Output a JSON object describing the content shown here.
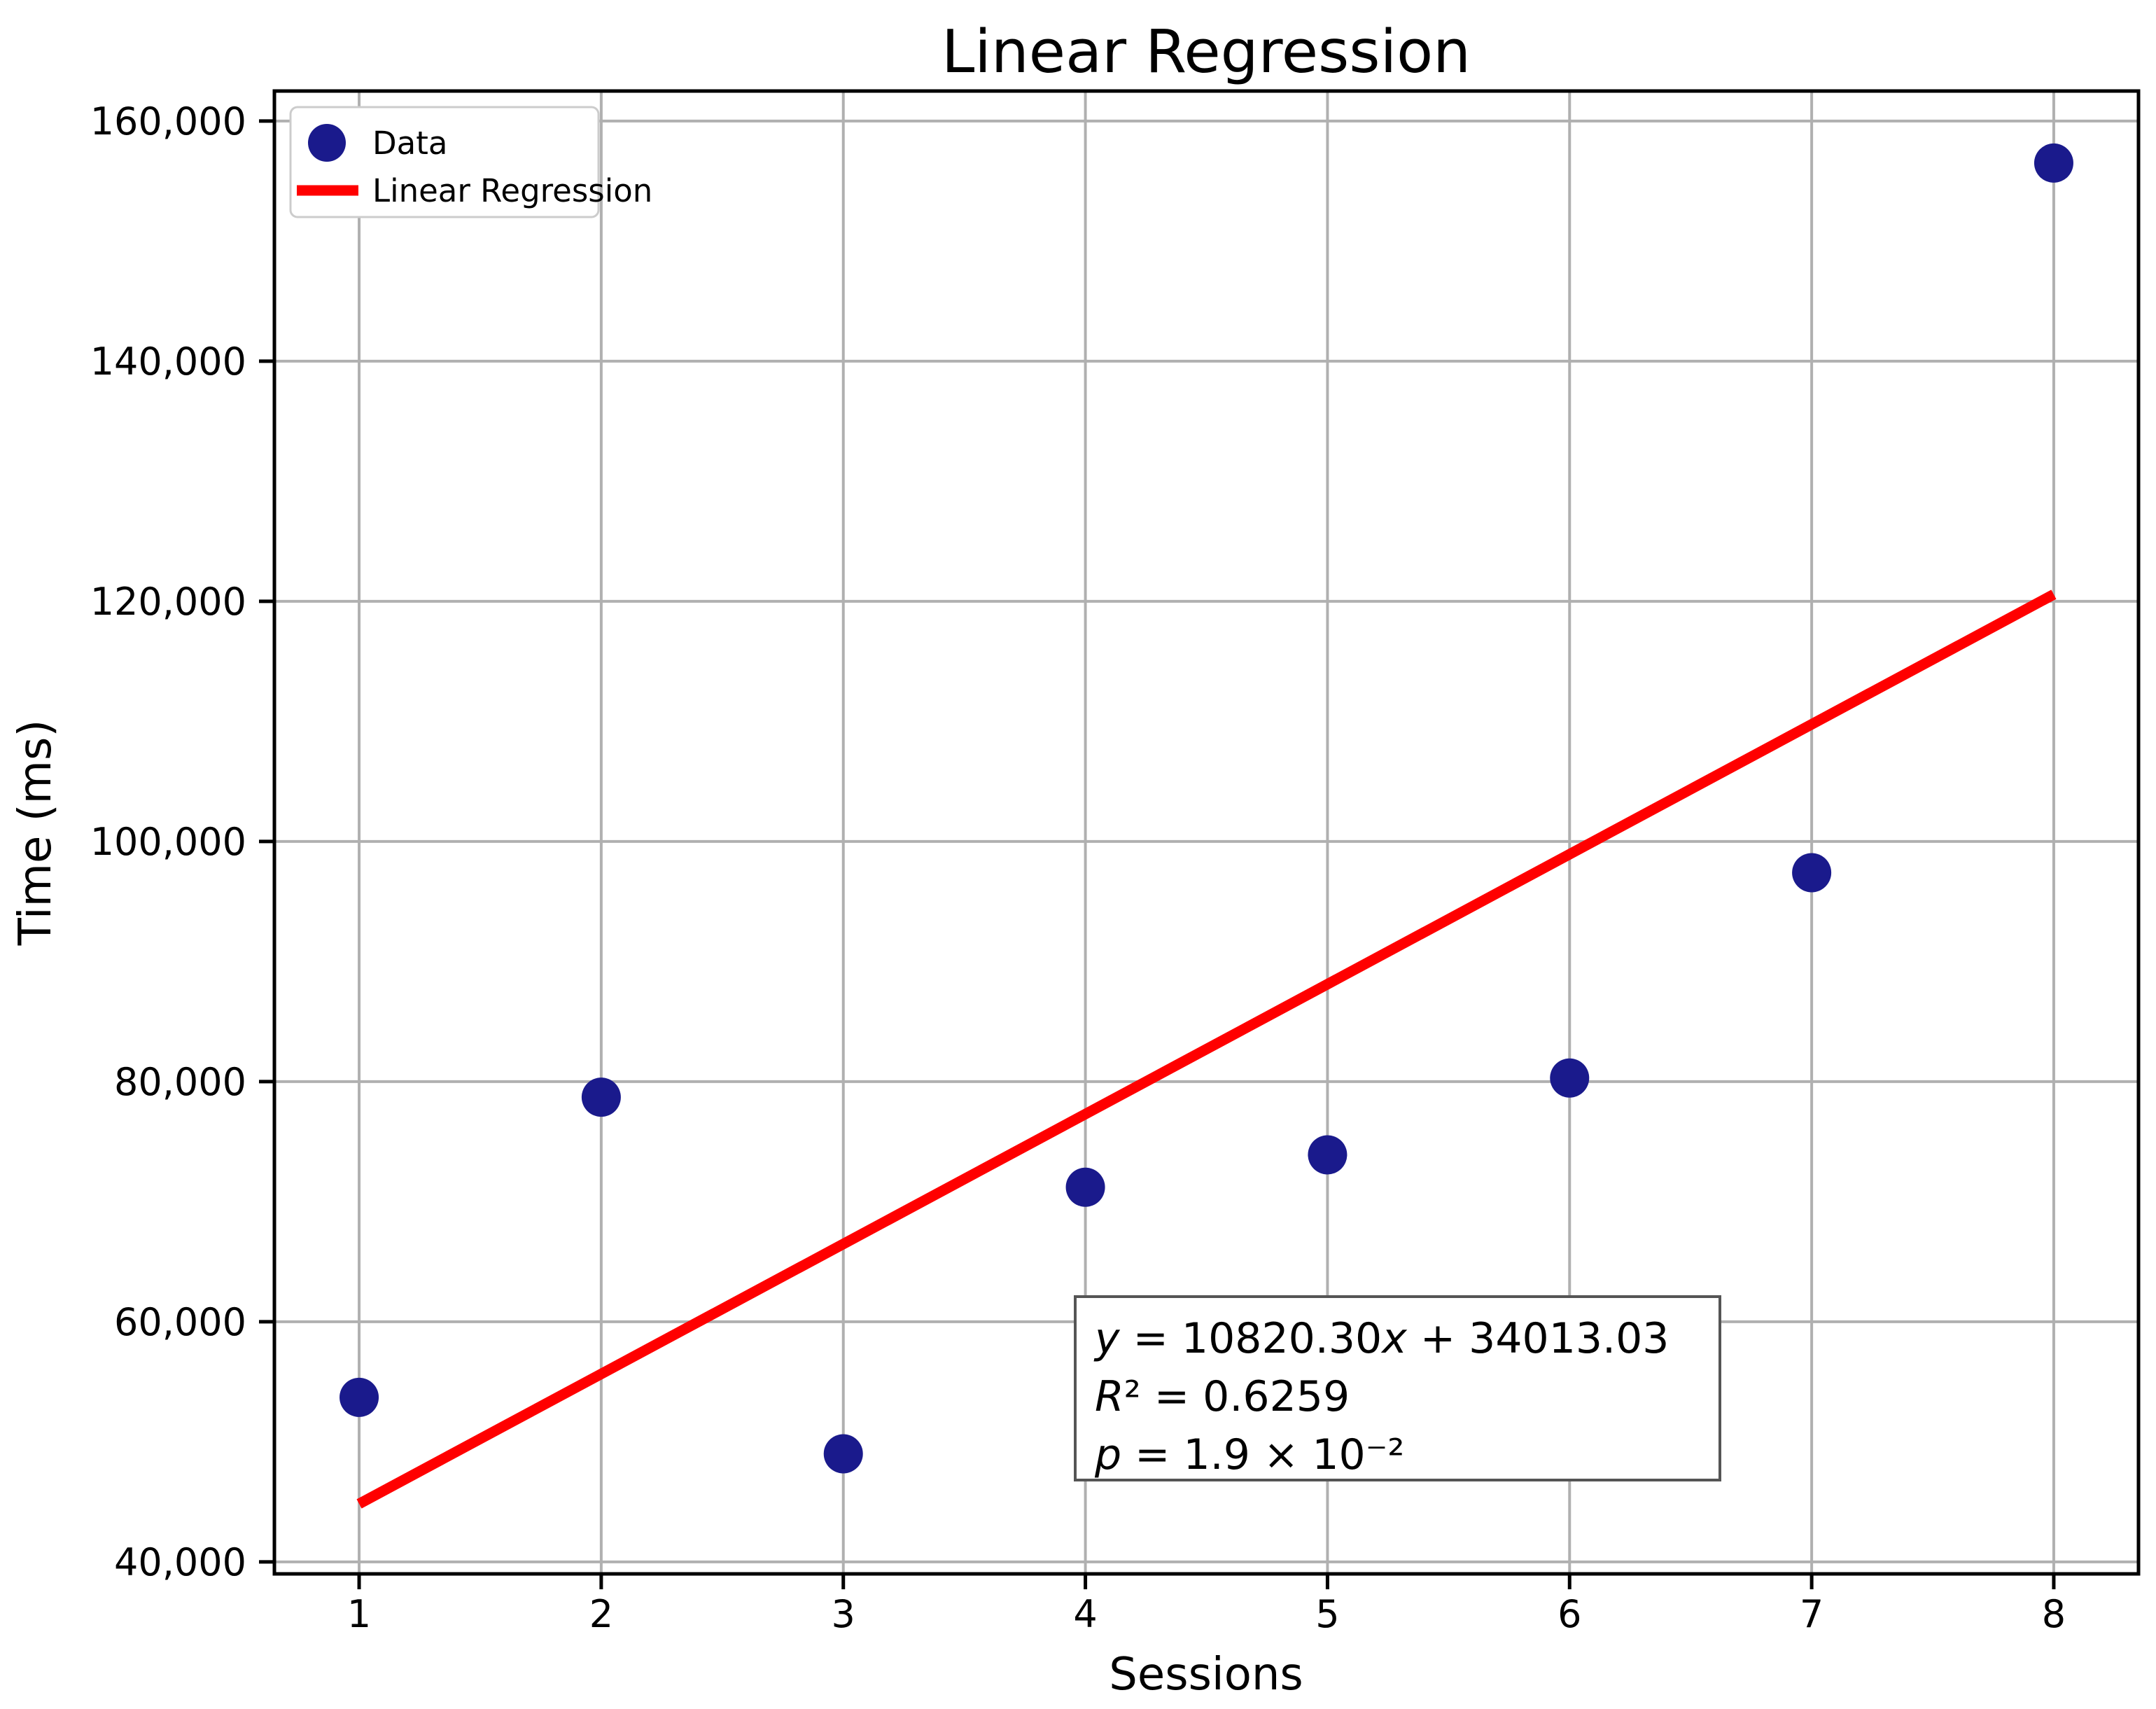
{
  "figure": {
    "background": "#ffffff"
  },
  "chart_data": {
    "type": "scatter",
    "title": "Linear Regression",
    "xlabel": "Sessions",
    "ylabel": "Time (ms)",
    "grid": true,
    "legend_position": "upper left",
    "legend_entries": [
      "Data",
      "Linear Regression"
    ],
    "xlim": [
      0.65,
      8.35
    ],
    "ylim": [
      39000,
      162500
    ],
    "x_ticks": [
      {
        "value": 1,
        "label": "1"
      },
      {
        "value": 2,
        "label": "2"
      },
      {
        "value": 3,
        "label": "3"
      },
      {
        "value": 4,
        "label": "4"
      },
      {
        "value": 5,
        "label": "5"
      },
      {
        "value": 6,
        "label": "6"
      },
      {
        "value": 7,
        "label": "7"
      },
      {
        "value": 8,
        "label": "8"
      }
    ],
    "y_ticks": [
      {
        "value": 40000,
        "label": "40,000"
      },
      {
        "value": 60000,
        "label": "60,000"
      },
      {
        "value": 80000,
        "label": "80,000"
      },
      {
        "value": 100000,
        "label": "100,000"
      },
      {
        "value": 120000,
        "label": "120,000"
      },
      {
        "value": 140000,
        "label": "140,000"
      },
      {
        "value": 160000,
        "label": "160,000"
      }
    ],
    "series": [
      {
        "name": "Data",
        "type": "scatter",
        "color": "#1a1a8c",
        "x": [
          1,
          2,
          3,
          4,
          5,
          6,
          7,
          8
        ],
        "y": [
          53700,
          78700,
          49000,
          71200,
          73900,
          80300,
          97400,
          156500
        ]
      },
      {
        "name": "Linear Regression",
        "type": "line",
        "color": "#ff0000",
        "slope": 10820.3,
        "intercept": 34013.03,
        "x_start": 1,
        "x_end": 8
      }
    ],
    "annotation": {
      "lines": [
        "y = 10820.30x + 34013.03",
        "R² = 0.6259",
        "p = 1.9 × 10⁻²"
      ]
    },
    "colors": {
      "grid": "#b0b0b0",
      "spine": "#000000",
      "tick": "#000000",
      "legend_border": "#cccccc",
      "annotation_border": "#555555"
    }
  }
}
